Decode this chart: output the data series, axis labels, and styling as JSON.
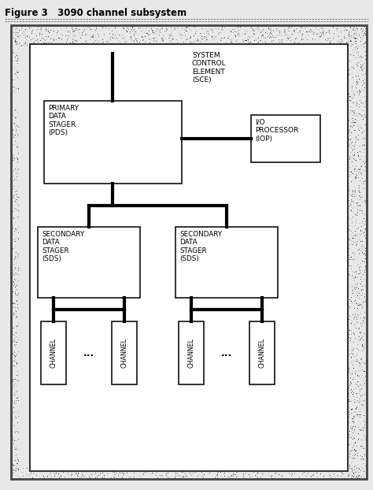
{
  "title": "Figure 3   3090 channel subsystem",
  "text_color": "#000000",
  "sce_label": "SYSTEM\nCONTROL\nELEMENT\n(SCE)",
  "pds_label": "PRIMARY\nDATA\nSTAGER\n(PDS)",
  "iop_label": "I/O\nPROCESSOR\n(IOP)",
  "sds_label": "SECONDARY\nDATA\nSTAGER\n(SDS)",
  "channel_label": "CHANNEL",
  "dots": "...",
  "font_size": 6.5,
  "channel_font_size": 5.8,
  "title_font_size": 8.5,
  "fig_width": 4.74,
  "fig_height": 6.22,
  "dpi": 100
}
